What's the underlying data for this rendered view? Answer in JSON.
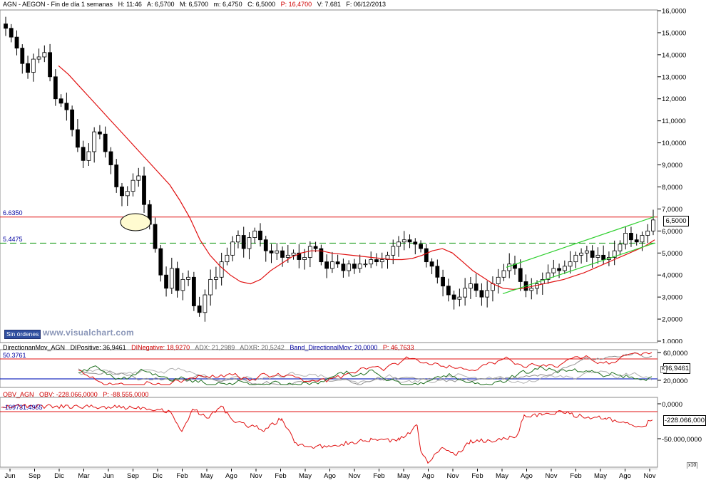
{
  "header": {
    "symbol": "AGN - AEGON - Fin de día 1 semanas",
    "high": "H: 11:46",
    "open": "A: 6,5700",
    "max": "M: 6,5700",
    "min": "m: 6,4750",
    "close": "C: 6,5000",
    "p": "P: 16,4700",
    "vol": "V: 7.681",
    "date": "F: 06/12/2013"
  },
  "price_panel": {
    "resistance_label": "6.6350",
    "support_label": "5.4475",
    "last_price_tag": "6,5000",
    "y_ticks": [
      "16,0000",
      "15,0000",
      "14,0000",
      "13,0000",
      "12,0000",
      "11,0000",
      "10,0000",
      "9,0000",
      "8,0000",
      "7,0000",
      "6,0000",
      "5,0000",
      "4,0000",
      "3,0000",
      "2,0000",
      "1,0000"
    ],
    "button_sin_ordenes": "Sin órdenes",
    "watermark": "www.visualchart.com",
    "colors": {
      "sma": "#e01010",
      "resistance": "#e01010",
      "support": "#20a020",
      "channel": "#30d030",
      "candle_up": "#ffffff",
      "candle_down": "#000000"
    }
  },
  "dmi_panel": {
    "title": "DirectionanMov_AGN",
    "dipositive": "DIPositive: 36,9461",
    "dinegative": "DINegative: 18,9270",
    "adx": "ADX: 21,2989",
    "adxr": "ADXR: 20,5242",
    "band": "Band_DirectionalMov: 20,0000",
    "p": "P: 46,7633",
    "level_label": "50.3761",
    "tick_top": "60,0000",
    "tick_bottom": "20,0000",
    "current_tag": "36,9461",
    "corner_marker": "K"
  },
  "obv_panel": {
    "title": "OBV_AGN",
    "obv": "OBV: -228.066,0000",
    "p": "P: -88.555,0000",
    "level_label": "-109731.4955",
    "tick_top": "0,0000",
    "tick_bottom": "-50.000,0000",
    "current_tag": "-228.066,000",
    "corner_marker": "x10"
  },
  "date_axis": [
    "Jun",
    "Sep",
    "Dic",
    "Mar",
    "Jun",
    "Sep",
    "Dic",
    "Feb",
    "May",
    "Ago",
    "Nov",
    "Feb",
    "May",
    "Ago",
    "Nov",
    "Feb",
    "May",
    "Ago",
    "Nov",
    "Feb",
    "May",
    "Ago",
    "Nov",
    "Feb",
    "May",
    "Ago",
    "Nov"
  ],
  "chart_data": {
    "type": "candlestick",
    "title": "AGN - AEGON - Fin de día 1 semanas",
    "ylim": [
      1,
      16
    ],
    "x_ticks": [
      "Jun",
      "Sep",
      "Dic",
      "Mar",
      "Jun",
      "Sep",
      "Dic",
      "Feb",
      "May",
      "Ago",
      "Nov",
      "Feb",
      "May",
      "Ago",
      "Nov",
      "Feb",
      "May",
      "Ago",
      "Nov",
      "Feb",
      "May",
      "Ago",
      "Nov",
      "Feb",
      "May",
      "Ago",
      "Nov"
    ],
    "horizontal_lines": [
      {
        "label": "6.6350",
        "value": 6.635
      },
      {
        "label": "5.4475",
        "value": 5.4475
      }
    ],
    "close_series": [
      15.2,
      14.8,
      14.3,
      13.6,
      13.2,
      13.8,
      13.9,
      14.1,
      13.0,
      12.0,
      11.8,
      11.5,
      10.6,
      9.8,
      9.2,
      9.6,
      10.5,
      10.4,
      9.6,
      9.0,
      8.0,
      7.6,
      7.8,
      8.3,
      8.5,
      7.2,
      6.3,
      5.2,
      4.0,
      3.4,
      4.3,
      3.3,
      3.8,
      3.9,
      2.6,
      2.3,
      3.1,
      3.8,
      3.9,
      4.6,
      4.9,
      5.5,
      5.8,
      5.2,
      5.7,
      6.0,
      5.6,
      5.1,
      5.0,
      5.1,
      4.8,
      4.9,
      5.0,
      4.7,
      4.8,
      5.3,
      5.2,
      4.6,
      4.3,
      4.6,
      4.5,
      4.2,
      4.5,
      4.3,
      4.5,
      4.5,
      4.7,
      4.6,
      4.7,
      4.9,
      5.3,
      5.5,
      5.6,
      5.5,
      5.4,
      5.2,
      4.6,
      4.4,
      3.9,
      3.5,
      3.1,
      2.9,
      3.0,
      3.4,
      3.6,
      3.3,
      3.0,
      3.3,
      3.6,
      3.9,
      4.2,
      4.5,
      4.3,
      3.7,
      3.3,
      3.4,
      3.6,
      3.8,
      4.1,
      4.3,
      4.2,
      4.4,
      4.6,
      4.9,
      5.0,
      5.1,
      4.8,
      4.9,
      4.7,
      4.8,
      5.1,
      5.4,
      5.9,
      5.6,
      5.5,
      5.8,
      6.0,
      6.5
    ],
    "sma_series": [
      13.5,
      13.1,
      12.6,
      12.1,
      11.6,
      11.1,
      10.6,
      10.1,
      9.6,
      9.1,
      8.6,
      8.1,
      7.4,
      6.6,
      5.6,
      4.9,
      4.4,
      4.0,
      3.7,
      3.6,
      3.8,
      4.2,
      4.5,
      4.8,
      5.0,
      5.1,
      5.1,
      5.0,
      4.95,
      4.9,
      4.85,
      4.8,
      4.75,
      4.7,
      4.7,
      4.75,
      4.9,
      5.1,
      5.2,
      5.0,
      4.6,
      4.2,
      3.9,
      3.6,
      3.4,
      3.35,
      3.4,
      3.5,
      3.6,
      3.7,
      3.8,
      3.95,
      4.1,
      4.3,
      4.5,
      4.7,
      4.9,
      5.1,
      5.3,
      5.6
    ],
    "series": [
      {
        "name": "DIPositive",
        "current": 36.9461
      },
      {
        "name": "DINegative",
        "current": 18.927
      },
      {
        "name": "ADX",
        "current": 21.2989
      },
      {
        "name": "ADXR",
        "current": 20.5242
      },
      {
        "name": "OBV",
        "current": -228066
      }
    ]
  }
}
